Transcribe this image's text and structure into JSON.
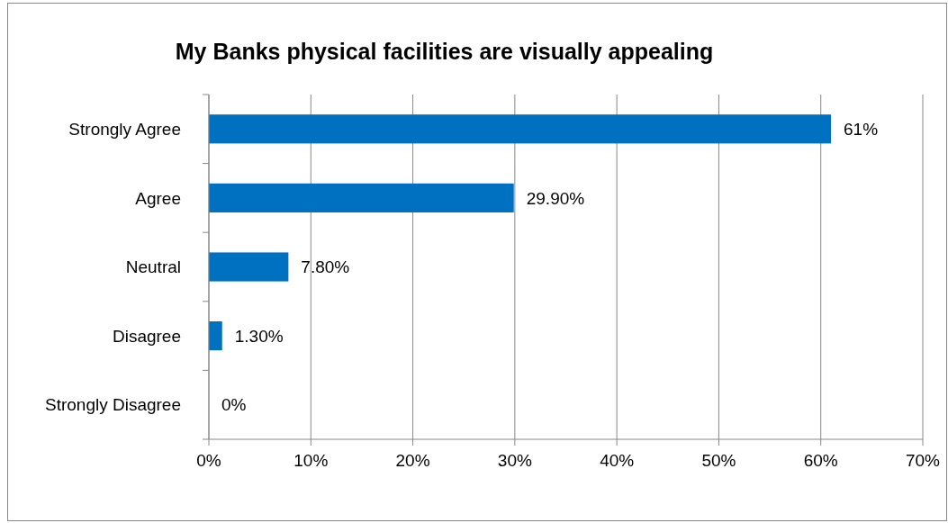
{
  "chart_data": {
    "type": "bar",
    "orientation": "horizontal",
    "title": "My Banks physical facilities are visually appealing",
    "categories": [
      "Strongly Agree",
      "Agree",
      "Neutral",
      "Disagree",
      "Strongly Disagree"
    ],
    "values": [
      61,
      29.9,
      7.8,
      1.3,
      0
    ],
    "value_labels": [
      "61%",
      "29.90%",
      "7.80%",
      "1.30%",
      "0%"
    ],
    "color": "#0070c0",
    "xlim": [
      0,
      70
    ],
    "xticks": [
      {
        "value": 0,
        "label": "0%"
      },
      {
        "value": 10,
        "label": "10%"
      },
      {
        "value": 20,
        "label": "20%"
      },
      {
        "value": 30,
        "label": "30%"
      },
      {
        "value": 40,
        "label": "40%"
      },
      {
        "value": 50,
        "label": "50%"
      },
      {
        "value": 60,
        "label": "60%"
      },
      {
        "value": 70,
        "label": "70%"
      }
    ],
    "grid": "x"
  }
}
